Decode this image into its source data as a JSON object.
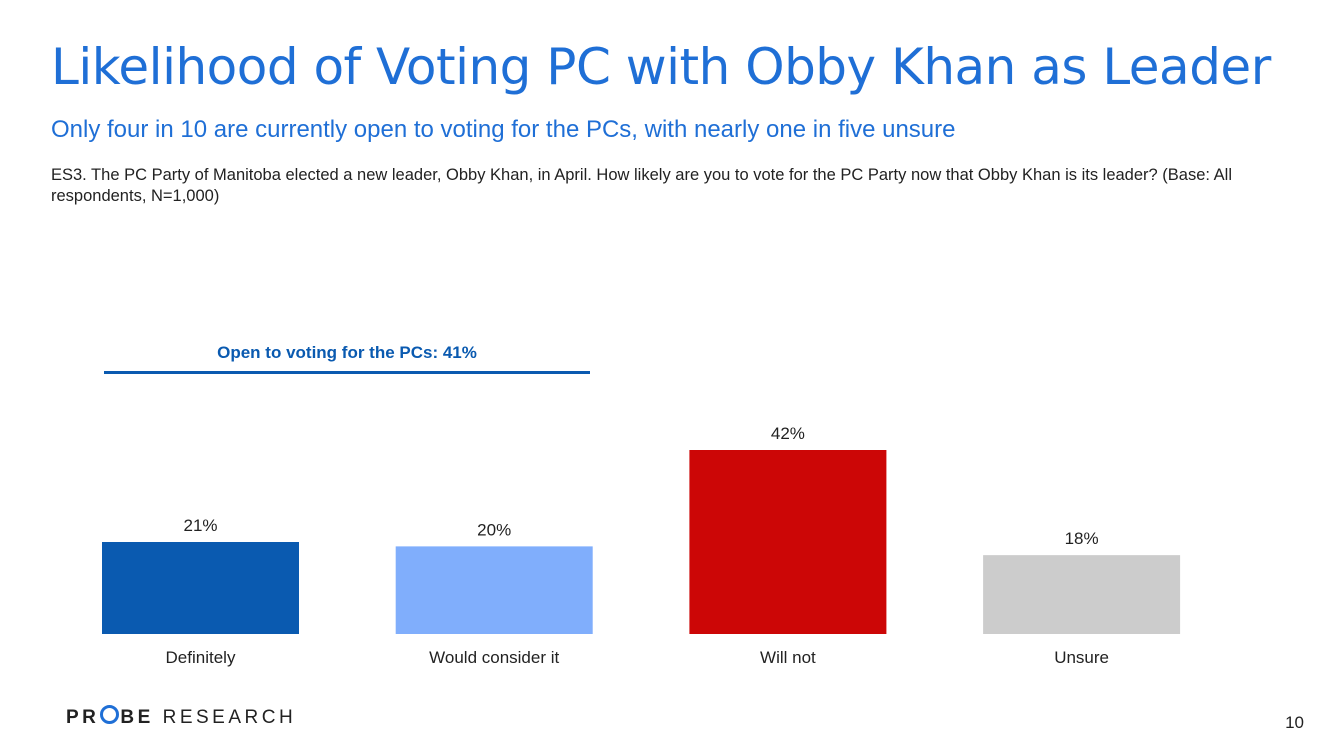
{
  "slide": {
    "title": "Likelihood of Voting PC with Obby Khan as Leader",
    "subtitle": "Only four in 10 are currently open to voting for the PCs, with nearly one in five unsure",
    "question": "ES3. The PC Party of Manitoba elected a new leader, Obby Khan, in April. How likely are you to vote for the PC Party now that Obby Khan is its leader? (Base: All respondents, N=1,000)",
    "bracket_label": "Open to voting for the PCs: 41%",
    "page_number": "10",
    "logo": {
      "text": "PROBE RESEARCH",
      "accent": "#1f6fd6"
    }
  },
  "chart_data": {
    "type": "bar",
    "categories": [
      "Definitely",
      "Would consider it",
      "Will not",
      "Unsure"
    ],
    "values": [
      21,
      20,
      42,
      18
    ],
    "data_labels": [
      "21%",
      "20%",
      "42%",
      "18%"
    ],
    "colors": [
      "#0a5ab0",
      "#80aefc",
      "#cc0606",
      "#cccccc"
    ],
    "ylim": [
      0,
      42
    ],
    "grid": false,
    "legend": "none"
  }
}
